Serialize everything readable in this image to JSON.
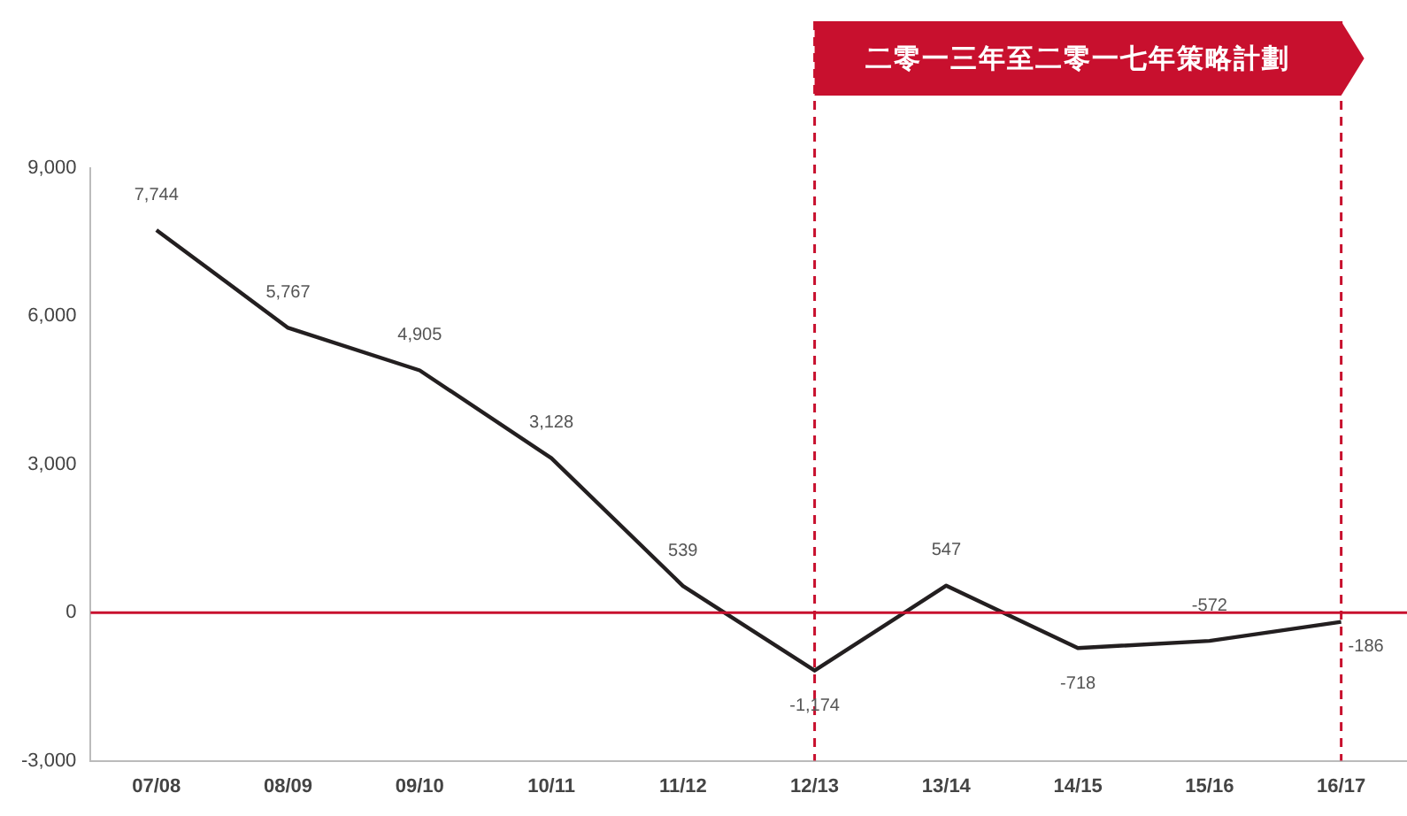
{
  "chart_data": {
    "type": "line",
    "categories": [
      "07/08",
      "08/09",
      "09/10",
      "10/11",
      "11/12",
      "12/13",
      "13/14",
      "14/15",
      "15/16",
      "16/17"
    ],
    "series": [
      {
        "color": "#231f20",
        "values": [
          7744,
          5767,
          4905,
          3128,
          539,
          -1174,
          547,
          -718,
          -572,
          -186
        ],
        "value_labels": [
          "7,744",
          "5,767",
          "4,905",
          "3,128",
          "539",
          "-1,174",
          "547",
          "-718",
          "-572",
          "-186"
        ]
      }
    ],
    "ylim": [
      -3000,
      9000
    ],
    "yticks": [
      {
        "value": -3000,
        "label": "-3,000"
      },
      {
        "value": 0,
        "label": "0"
      },
      {
        "value": 3000,
        "label": "3,000"
      },
      {
        "value": 6000,
        "label": "6,000"
      },
      {
        "value": 9000,
        "label": "9,000"
      }
    ],
    "ref_lines": [
      {
        "axis": "y",
        "value": 0,
        "color": "#c8102e"
      },
      {
        "axis": "x",
        "value": "12/13",
        "color": "#c8102e",
        "line_style": "dashed"
      },
      {
        "axis": "x",
        "value": "16/17",
        "color": "#c8102e",
        "line_style": "dashed"
      }
    ],
    "annotations": [
      "二零一三年至二零一七年策略計劃"
    ],
    "grid": false,
    "legend": false,
    "marker": "none",
    "line_style": "solid"
  }
}
